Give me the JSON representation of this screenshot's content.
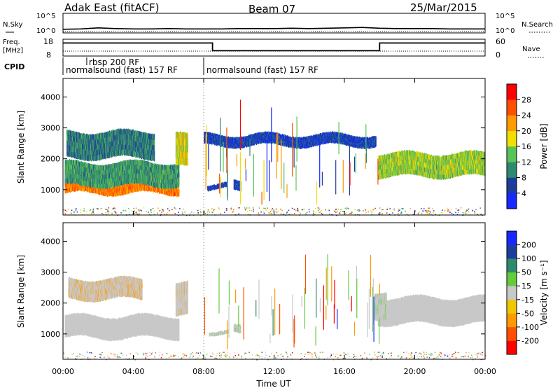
{
  "header": {
    "station": "Adak East (fitACF)",
    "beam": "Beam 07",
    "date": "25/Mar/2015"
  },
  "noise_panel": {
    "left_label": "N.Sky",
    "right_label": "N.Search",
    "left_ticks": [
      "10^5",
      "10^0"
    ],
    "right_ticks": [
      "10^5",
      "10^0"
    ]
  },
  "freq_panel": {
    "left_label_1": "Freq.",
    "left_label_2": "[MHz]",
    "right_label": "Nave",
    "left_ticks": [
      "18",
      "8"
    ],
    "right_ticks": [
      "60",
      "0"
    ]
  },
  "cpid": {
    "label": "CPID",
    "segments": [
      {
        "start_h": 0.0,
        "end_h": 8.0,
        "text": "normalsound (fast) 157 RF"
      },
      {
        "start_h": 8.0,
        "end_h": 24.0,
        "text": "normalsound (fast) 157 RF"
      }
    ],
    "insert": {
      "start_h": 1.35,
      "text": "rbsp 200 RF"
    }
  },
  "x_axis": {
    "label": "Time UT",
    "ticks": [
      "00:00",
      "04:00",
      "08:00",
      "12:00",
      "16:00",
      "20:00",
      "00:00"
    ]
  },
  "power_colorbar": {
    "title": "Power [dB]",
    "ticks": [
      "28",
      "24",
      "20",
      "16",
      "12",
      "8",
      "4"
    ],
    "colors": [
      "#1428ff",
      "#1e3c9c",
      "#2e8a6e",
      "#56c456",
      "#f0e000",
      "#ff9a00",
      "#ff5000",
      "#ff0000"
    ]
  },
  "velocity_colorbar": {
    "title": "Velocity [m s⁻¹]",
    "ticks": [
      "200",
      "100",
      "50",
      "15",
      "-15",
      "-50",
      "-100",
      "-200"
    ],
    "colors": [
      "#ff0000",
      "#ff5000",
      "#ff9a00",
      "#f0c800",
      "#c8c8c8",
      "#64cc3c",
      "#2e8a6e",
      "#1e3c9c",
      "#1428ff"
    ]
  },
  "chart_data": [
    {
      "type": "line",
      "title": "N.Sky / N.Search",
      "x": [
        0,
        1,
        2,
        3,
        4,
        5,
        6,
        7,
        8,
        9,
        10,
        11,
        12,
        13,
        14,
        15,
        16,
        17,
        18,
        19,
        20,
        21,
        22,
        23,
        24
      ],
      "series": [
        {
          "name": "N.Sky",
          "values": [
            0.8,
            0.9,
            1.2,
            1.0,
            0.9,
            0.9,
            1.0,
            0.9,
            0.9,
            0.9,
            1.0,
            1.0,
            1.0,
            1.1,
            1.0,
            1.1,
            1.2,
            1.3,
            1.1,
            1.0,
            1.0,
            1.0,
            0.9,
            0.9,
            0.9
          ]
        },
        {
          "name": "N.Search",
          "values": [
            0.1,
            0.1,
            0.1,
            0.1,
            0.1,
            0.1,
            0.1,
            0.1,
            0.1,
            0.1,
            0.1,
            0.1,
            0.1,
            0.1,
            0.1,
            0.1,
            0.1,
            0.1,
            0.1,
            0.1,
            0.1,
            0.1,
            0.1,
            0.1,
            0.1
          ]
        }
      ],
      "ylim": [
        0,
        5
      ]
    },
    {
      "type": "line",
      "title": "Freq. / Nave",
      "x": [
        0,
        8.5,
        8.5,
        18,
        18,
        24
      ],
      "series": [
        {
          "name": "Freq.",
          "values": [
            16,
            16,
            11,
            11,
            16,
            16
          ]
        },
        {
          "name": "Nave",
          "values": [
            12,
            12,
            12,
            12,
            12,
            12
          ]
        }
      ],
      "ylim": [
        8,
        18
      ]
    },
    {
      "type": "heatmap",
      "title": "Power [dB]",
      "ylabel": "Slant Range [km]",
      "xlabel": "Time UT",
      "xlim": [
        0,
        24
      ],
      "ylim": [
        180,
        4600
      ],
      "yticks": [
        1000,
        2000,
        3000,
        4000
      ],
      "bands": [
        {
          "t0": 0.1,
          "t1": 6.6,
          "r0": 850,
          "r1": 1500,
          "value": 24
        },
        {
          "t0": 0.1,
          "t1": 6.6,
          "r0": 1100,
          "r1": 1900,
          "value": 12
        },
        {
          "t0": 0.2,
          "t1": 5.2,
          "r0": 2000,
          "r1": 2900,
          "value": 10
        },
        {
          "t0": 6.4,
          "t1": 7.1,
          "r0": 1700,
          "r1": 2800,
          "value": 18
        },
        {
          "t0": 8.2,
          "t1": 9.3,
          "r0": 1000,
          "r1": 1200,
          "value": 6
        },
        {
          "t0": 9.7,
          "t1": 10.1,
          "r0": 950,
          "r1": 1300,
          "value": 6
        },
        {
          "t0": 17.9,
          "t1": 24.0,
          "r0": 1400,
          "r1": 2200,
          "value": 16
        },
        {
          "t0": 8.0,
          "t1": 17.8,
          "r0": 2400,
          "r1": 2800,
          "value": 6
        }
      ]
    },
    {
      "type": "heatmap",
      "title": "Velocity [m s⁻¹]",
      "ylabel": "Slant Range [km]",
      "xlabel": "Time UT",
      "xlim": [
        0,
        24
      ],
      "ylim": [
        180,
        4600
      ],
      "yticks": [
        1000,
        2000,
        3000,
        4000
      ],
      "bands": [
        {
          "t0": 0.1,
          "t1": 6.6,
          "r0": 850,
          "r1": 1600,
          "value": 0
        },
        {
          "t0": 6.4,
          "t1": 7.1,
          "r0": 1600,
          "r1": 2700,
          "value": -20
        },
        {
          "t0": 0.3,
          "t1": 4.5,
          "r0": 2100,
          "r1": 2800,
          "value": -40
        },
        {
          "t0": 8.3,
          "t1": 9.4,
          "r0": 1000,
          "r1": 1150,
          "value": 30
        },
        {
          "t0": 9.7,
          "t1": 10.1,
          "r0": 950,
          "r1": 1250,
          "value": 30
        },
        {
          "t0": 17.9,
          "t1": 24.0,
          "r0": 1300,
          "r1": 2200,
          "value": 0
        },
        {
          "t0": 17.7,
          "t1": 18.4,
          "r0": 1500,
          "r1": 2400,
          "value": 30
        }
      ]
    }
  ]
}
